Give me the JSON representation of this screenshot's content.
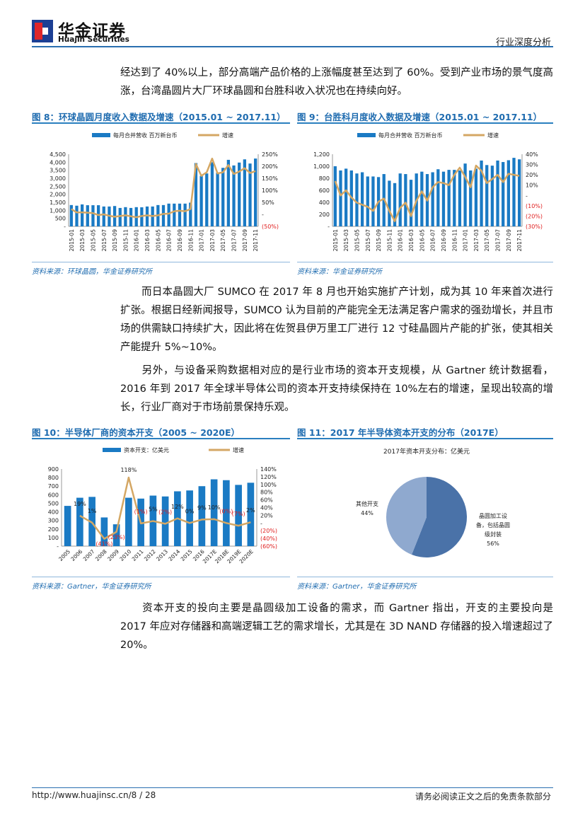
{
  "header": {
    "logo_cn": "华金证券",
    "logo_en": "Huajin Securities",
    "report_type": "行业深度分析"
  },
  "paragraphs": [
    "经达到了 40%以上，部分高端产品价格的上涨幅度甚至达到了 60%。受到产业市场的景气度高涨，台湾晶圆片大厂环球晶圆和台胜科收入状况也在持续向好。",
    "而日本晶圆大厂 SUMCO 在 2017 年 8 月也开始实施扩产计划，成为其 10 年来首次进行扩张。根据日经新闻报导，SUMCO 认为目前的产能完全无法满足客户需求的强劲增长，并且市场的供需缺口持续扩大，因此将在佐贺县伊万里工厂进行 12 寸硅晶圆片产能的扩张，使其相关产能提升 5%~10%。",
    "另外，与设备采购数据相对应的是行业市场的资本开支规模，从 Gartner 统计数据看，2016 年到 2017 年全球半导体公司的资本开支持续保持在 10%左右的增速，呈现出较高的增长，行业厂商对于市场前景保持乐观。",
    "资本开支的投向主要是晶圆级加工设备的需求，而 Gartner 指出，开支的主要投向是 2017 年应对存储器和高端逻辑工艺的需求增长，尤其是在 3D NAND 存储器的投入增速超过了 20%。"
  ],
  "figures": [
    {
      "title": "图 8：环球晶圆月度收入数据及增速（2015.01 ~ 2017.11）",
      "source": "资料来源：环球晶圆，华金证券研究所"
    },
    {
      "title": "图 9：台胜科月度收入数据及增速（2015.01 ~ 2017.11）",
      "source": "资料来源：华金证券研究所"
    },
    {
      "title": "图 10：半导体厂商的资本开支（2005 ~ 2020E）",
      "source": "资料来源：Gartner，华金证券研究所"
    },
    {
      "title": "图 11：2017 年半导体资本开支的分布（2017E）",
      "source": "资料来源：Gartner，华金证券研究所"
    }
  ],
  "footer": {
    "url": "http://www.huajinsc.cn/8 / 28",
    "disclaimer": "请务必阅读正文之后的免责条款部分"
  },
  "chart_data": [
    {
      "type": "bar+line",
      "bar_color": "#1a7ac4",
      "line_color": "#d4a764",
      "legend": [
        "每月合并营收 百万新台币",
        "增速"
      ],
      "categories": [
        "2015-01",
        "2015-02",
        "2015-03",
        "2015-04",
        "2015-05",
        "2015-06",
        "2015-07",
        "2015-08",
        "2015-09",
        "2015-10",
        "2015-11",
        "2015-12",
        "2016-01",
        "2016-02",
        "2016-03",
        "2016-04",
        "2016-05",
        "2016-06",
        "2016-07",
        "2016-08",
        "2016-09",
        "2016-10",
        "2016-11",
        "2016-12",
        "2017-01",
        "2017-02",
        "2017-03",
        "2017-04",
        "2017-05",
        "2017-06",
        "2017-07",
        "2017-08",
        "2017-09",
        "2017-10",
        "2017-11"
      ],
      "series": [
        {
          "name": "每月合并营收 百万新台币",
          "axis": "left",
          "values": [
            1330,
            1290,
            1370,
            1320,
            1320,
            1320,
            1240,
            1240,
            1270,
            1150,
            1200,
            1150,
            1200,
            1190,
            1240,
            1240,
            1330,
            1330,
            1420,
            1420,
            1420,
            1420,
            1480,
            3950,
            3150,
            3300,
            4000,
            3350,
            3650,
            4150,
            3800,
            3980,
            4180,
            3920,
            4230
          ]
        },
        {
          "name": "增速",
          "axis": "right",
          "unit": "%",
          "values": [
            22,
            8,
            8,
            7,
            5,
            -3,
            0,
            -6,
            -10,
            -7,
            -4,
            -8,
            -12,
            -7,
            -4,
            -7,
            -4,
            2,
            3,
            13,
            15,
            13,
            22,
            210,
            160,
            175,
            232,
            170,
            175,
            205,
            168,
            178,
            192,
            172,
            180
          ]
        }
      ],
      "y_left": {
        "min": 0,
        "max": 4500,
        "ticks": [
          "-",
          "500",
          "1,000",
          "1,500",
          "2,000",
          "2,500",
          "3,000",
          "3,500",
          "4,000",
          "4,500"
        ]
      },
      "y_right": {
        "min": -50,
        "max": 250,
        "ticks": [
          "(50%)",
          "-",
          "50%",
          "100%",
          "150%",
          "200%",
          "250%"
        ]
      },
      "x_tick_labels": [
        "2015-01",
        "2015-03",
        "2015-05",
        "2015-07",
        "2015-09",
        "2015-11",
        "2016-01",
        "2016-03",
        "2016-05",
        "2016-07",
        "2016-09",
        "2016-11",
        "2017-01",
        "2017-03",
        "2017-05",
        "2017-07",
        "2017-09",
        "2017-11"
      ],
      "legend_position": "top"
    },
    {
      "type": "bar+line",
      "bar_color": "#1a7ac4",
      "line_color": "#d4a764",
      "legend": [
        "每月合并营收 百万新台币",
        "增速"
      ],
      "categories": [
        "2015-01",
        "2015-02",
        "2015-03",
        "2015-04",
        "2015-05",
        "2015-06",
        "2015-07",
        "2015-08",
        "2015-09",
        "2015-10",
        "2015-11",
        "2015-12",
        "2016-01",
        "2016-02",
        "2016-03",
        "2016-04",
        "2016-05",
        "2016-06",
        "2016-07",
        "2016-08",
        "2016-09",
        "2016-10",
        "2016-11",
        "2016-12",
        "2017-01",
        "2017-02",
        "2017-03",
        "2017-04",
        "2017-05",
        "2017-06",
        "2017-07",
        "2017-08",
        "2017-09",
        "2017-10",
        "2017-11"
      ],
      "series": [
        {
          "name": "每月合并营收 百万新台币",
          "axis": "left",
          "values": [
            1000,
            930,
            960,
            930,
            880,
            900,
            830,
            830,
            820,
            870,
            760,
            720,
            880,
            870,
            775,
            880,
            910,
            870,
            900,
            950,
            910,
            940,
            940,
            930,
            1045,
            930,
            960,
            1095,
            1020,
            1010,
            1095,
            1070,
            1100,
            1140,
            1115
          ]
        },
        {
          "name": "增速",
          "axis": "right",
          "unit": "%",
          "values": [
            14,
            0,
            5,
            -2,
            -7,
            -9,
            -11,
            -15,
            -6,
            -3,
            -15,
            -25,
            -12,
            -7,
            -20,
            -5,
            4,
            -5,
            8,
            13,
            12,
            10,
            20,
            27,
            18,
            8,
            29,
            24,
            12,
            16,
            20,
            13,
            21,
            20,
            19
          ]
        }
      ],
      "y_left": {
        "min": 0,
        "max": 1200,
        "ticks": [
          "-",
          "200",
          "400",
          "600",
          "800",
          "1,000",
          "1,200"
        ]
      },
      "y_right": {
        "min": -30,
        "max": 40,
        "ticks": [
          "(30%)",
          "(20%)",
          "(10%)",
          "-",
          "10%",
          "20%",
          "30%",
          "40%"
        ]
      },
      "x_tick_labels": [
        "2015-01",
        "2015-03",
        "2015-05",
        "2015-07",
        "2015-09",
        "2015-11",
        "2016-01",
        "2016-03",
        "2016-05",
        "2016-07",
        "2016-09",
        "2016-11",
        "2017-01",
        "2017-03",
        "2017-05",
        "2017-07",
        "2017-09",
        "2017-11"
      ],
      "legend_position": "top"
    },
    {
      "type": "bar+line",
      "bar_color": "#1a7ac4",
      "line_color": "#d4a764",
      "legend": [
        "资本开支：亿美元",
        "增速"
      ],
      "categories": [
        "2005",
        "2006",
        "2007",
        "2008",
        "2009",
        "2010",
        "2011",
        "2012",
        "2013",
        "2014",
        "2015",
        "2016",
        "2017E",
        "2018E",
        "2019E",
        "2020E"
      ],
      "series": [
        {
          "name": "资本开支：亿美元",
          "axis": "left",
          "values": [
            470,
            565,
            575,
            335,
            255,
            565,
            555,
            590,
            580,
            640,
            650,
            700,
            780,
            770,
            715,
            740
          ]
        },
        {
          "name": "增速",
          "axis": "right",
          "unit": "%",
          "values": [
            null,
            19,
            1,
            -41,
            -23,
            118,
            -1,
            5,
            -2,
            12,
            0,
            9,
            10,
            0,
            -7,
            2
          ]
        }
      ],
      "data_labels": [
        "",
        "19%",
        "1%",
        "(41%)",
        "(23%)",
        "118%",
        "(1%)",
        "5%",
        "(2%)",
        "12%",
        "0%",
        "9%",
        "10%",
        "(0%)",
        "(7%)",
        "2%"
      ],
      "y_left": {
        "min": 0,
        "max": 900,
        "ticks": [
          "-",
          "100",
          "200",
          "300",
          "400",
          "500",
          "600",
          "700",
          "800",
          "900"
        ]
      },
      "y_right": {
        "min": -60,
        "max": 140,
        "ticks": [
          "(60%)",
          "(40%)",
          "(20%)",
          "-",
          "20%",
          "40%",
          "60%",
          "80%",
          "100%",
          "120%",
          "140%"
        ]
      },
      "legend_position": "top"
    },
    {
      "type": "pie",
      "title": "2017年资本开支分布：亿美元",
      "slices": [
        {
          "label": "晶圆加工设备，包括晶圆级封装",
          "value": 56,
          "display": "56%",
          "color": "#4a72a8"
        },
        {
          "label": "其他开支",
          "value": 44,
          "display": "44%",
          "color": "#8fa9cf"
        }
      ]
    }
  ]
}
